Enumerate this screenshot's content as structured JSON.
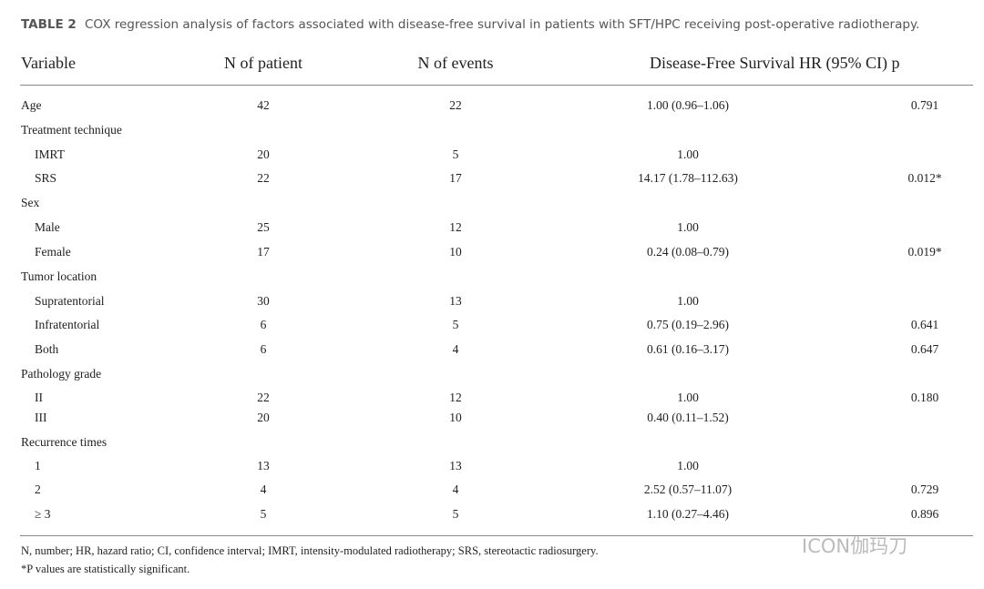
{
  "caption": {
    "label": "TABLE 2",
    "text": "COX regression analysis of factors associated with disease-free survival in patients with SFT/HPC receiving post-operative radiotherapy."
  },
  "table": {
    "headers": {
      "variable": "Variable",
      "patients": "N of patient",
      "events": "N of events",
      "hr": "Disease-Free Survival HR (95% CI) p"
    },
    "rows": [
      {
        "variable": "Age",
        "patients": "42",
        "events": "22",
        "hr": "1.00 (0.96–1.06)",
        "p": "0.791"
      },
      {
        "variable": "Treatment technique",
        "levels": [
          {
            "variable": "IMRT",
            "patients": "20",
            "events": "5",
            "hr": "1.00"
          },
          {
            "variable": "SRS",
            "patients": "22",
            "events": "17",
            "hr": "14.17 (1.78–112.63)",
            "p": "0.012*"
          }
        ]
      },
      {
        "variable": "Sex",
        "levels": [
          {
            "variable": "Male",
            "patients": "25",
            "events": "12",
            "hr": "1.00"
          },
          {
            "variable": "Female",
            "patients": "17",
            "events": "10",
            "hr": "0.24 (0.08–0.79)",
            "p": "0.019*"
          }
        ]
      },
      {
        "variable": "Tumor location",
        "levels": [
          {
            "variable": "Supratentorial",
            "patients": "30",
            "events": "13",
            "hr": "1.00"
          },
          {
            "variable": "Infratentorial",
            "patients": "6",
            "events": "5",
            "hr": "0.75 (0.19–2.96)",
            "p": "0.641"
          },
          {
            "variable": "Both",
            "patients": "6",
            "events": "4",
            "hr": "0.61 (0.16–3.17)",
            "p": "0.647"
          }
        ]
      },
      {
        "variable": "Pathology grade",
        "levels": [
          {
            "variable": "II",
            "patients": "22",
            "events": "12",
            "hr": "1.00",
            "p": "0.180"
          },
          {
            "variable": "III",
            "patients": "20",
            "events": "10",
            "hr": "0.40 (0.11–1.52)"
          }
        ]
      },
      {
        "variable": "Recurrence times",
        "levels": [
          {
            "variable": "1",
            "patients": "13",
            "events": "13",
            "hr": "1.00"
          },
          {
            "variable": "2",
            "patients": "4",
            "events": "4",
            "hr": "2.52 (0.57–11.07)",
            "p": "0.729"
          },
          {
            "variable": "≥ 3",
            "patients": "5",
            "events": "5",
            "hr": "1.10 (0.27–4.46)",
            "p": "0.896"
          }
        ]
      }
    ]
  },
  "footnotes": [
    "N, number; HR, hazard ratio; CI, confidence interval; IMRT, intensity-modulated radiotherapy; SRS, stereotactic radiosurgery.",
    "*P values are statistically significant."
  ],
  "watermark": "ICON伽玛刀"
}
